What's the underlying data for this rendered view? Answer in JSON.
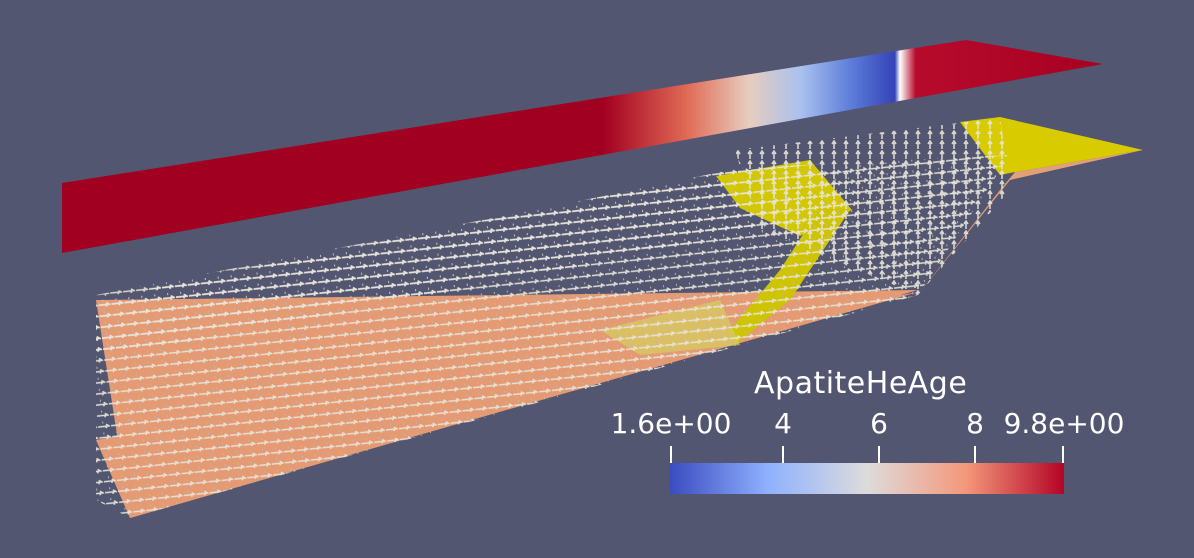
{
  "legend": {
    "title": "ApatiteHeAge",
    "ticks": [
      {
        "label": "1.6e+00",
        "value": 1.6
      },
      {
        "label": "4",
        "value": 4
      },
      {
        "label": "6",
        "value": 6
      },
      {
        "label": "8",
        "value": 8
      },
      {
        "label": "9.8e+00",
        "value": 9.8
      }
    ],
    "range": [
      1.6,
      9.8
    ],
    "colormap": [
      "#3b4cc0",
      "#8fb1fe",
      "#dddcdc",
      "#f4987a",
      "#b40426"
    ]
  },
  "colors": {
    "background": "#525670",
    "surface_high": "#a70020",
    "isosurface": "#d8cc00",
    "base": "#e49a72",
    "glyphs": "#e6e3d8"
  }
}
